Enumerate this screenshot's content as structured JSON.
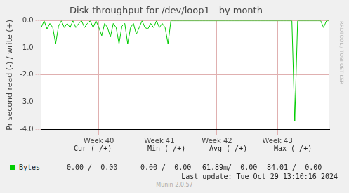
{
  "chart_data": {
    "type": "line",
    "title": "Disk throughput for /dev/loop1 - by month",
    "y_label": "Pr second read (-) / write (+)",
    "categories": [
      null,
      null,
      null,
      null,
      null,
      null,
      null,
      null,
      null,
      null,
      null,
      null,
      null,
      null,
      null,
      null,
      null,
      null,
      null,
      null,
      "Week 40",
      null,
      null,
      null,
      null,
      null,
      null,
      null,
      null,
      null,
      null,
      null,
      null,
      null,
      null,
      null,
      null,
      null,
      null,
      null,
      null,
      "Week 41",
      null,
      null,
      null,
      null,
      null,
      null,
      null,
      null,
      null,
      null,
      null,
      null,
      null,
      null,
      null,
      null,
      null,
      null,
      null,
      "Week 42",
      null,
      null,
      null,
      null,
      null,
      null,
      null,
      null,
      null,
      null,
      null,
      null,
      null,
      null,
      null,
      null,
      null,
      null,
      null,
      null,
      "Week 43",
      null,
      null,
      null,
      null,
      null,
      null,
      null,
      null,
      null,
      null,
      null,
      null,
      null,
      null,
      null,
      null,
      null,
      null
    ],
    "series": [
      {
        "name": "Bytes",
        "color": "#00cc00",
        "values": [
          -0.25,
          0,
          -0.3,
          -0.1,
          -0.25,
          -0.85,
          -0.2,
          0,
          -0.25,
          -0.1,
          -0.25,
          0,
          -0.25,
          -0.1,
          0,
          -0.25,
          -0.1,
          0,
          -0.25,
          0,
          -0.25,
          -0.55,
          -0.1,
          -0.25,
          -0.6,
          -0.1,
          -0.25,
          -0.85,
          -0.2,
          -0.1,
          -0.85,
          -0.25,
          -0.1,
          -0.5,
          -0.25,
          0,
          -0.25,
          -0.3,
          -0.1,
          -0.25,
          0,
          -0.25,
          -0.1,
          -0.25,
          -0.85,
          0,
          0,
          0,
          0,
          0,
          0,
          0,
          0,
          0,
          0,
          0,
          0,
          0,
          0,
          0,
          0,
          0,
          0,
          0,
          0,
          0,
          0,
          0,
          0,
          0,
          0,
          0,
          0,
          0,
          0,
          0,
          0,
          0,
          0,
          0,
          0,
          0,
          0,
          0,
          0,
          0,
          0,
          0,
          -3.7,
          0,
          0,
          0,
          0,
          0,
          0,
          0,
          0,
          0,
          -0.25,
          0,
          0
        ]
      }
    ],
    "ylim": [
      -4,
      0
    ],
    "yticks": [
      {
        "value": 0,
        "label": "0.0"
      },
      {
        "value": -1,
        "label": "-1.0"
      },
      {
        "value": -2,
        "label": "-2.0"
      },
      {
        "value": -3,
        "label": "-3.0"
      },
      {
        "value": -4,
        "label": "-4.0"
      }
    ],
    "grid": true
  },
  "legend_table": {
    "columns": [
      "Cur (-/+)",
      "Min (-/+)",
      "Avg (-/+)",
      "Max (-/+)"
    ],
    "values": [
      "0.00 /  0.00",
      "0.00 /  0.00",
      "61.89m/  0.00",
      "84.01 /  0.00"
    ]
  },
  "last_update": "Last update: Tue Oct 29 13:10:16 2024",
  "footer": "Munin 2.0.57",
  "watermark": "RRDTOOL / TOBI OETIKER"
}
